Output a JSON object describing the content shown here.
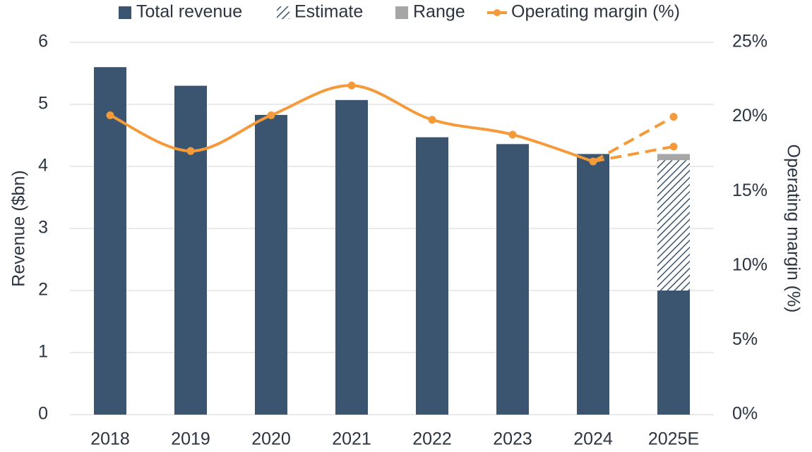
{
  "chart_data": {
    "type": "bar",
    "categories": [
      "2018",
      "2019",
      "2020",
      "2021",
      "2022",
      "2023",
      "2024",
      "2025E"
    ],
    "series": [
      {
        "name": "Total revenue",
        "color": "#3b5470",
        "values": [
          5.6,
          5.3,
          4.83,
          5.07,
          4.47,
          4.36,
          4.2,
          2.0
        ]
      },
      {
        "name": "Estimate",
        "color": "#3b5470",
        "pattern": "hatch",
        "values": [
          null,
          null,
          null,
          null,
          null,
          null,
          null,
          2.1
        ]
      },
      {
        "name": "Range",
        "color": "#a6a6a6",
        "values": [
          null,
          null,
          null,
          null,
          null,
          null,
          null,
          0.1
        ]
      },
      {
        "name": "Operating margin (%)",
        "color": "#f59a3a",
        "axis": "y2",
        "type": "line",
        "smooth": true,
        "values": [
          20.1,
          17.7,
          20.1,
          22.1,
          19.8,
          18.8,
          17.0,
          null
        ],
        "estimate_range": [
          18.0,
          20.0
        ]
      }
    ],
    "stacked": true,
    "ylabel": "Revenue ($bn)",
    "y2label": "Operating margin (%)",
    "ylim": [
      0,
      6
    ],
    "yticks": [
      0,
      1,
      2,
      3,
      4,
      5,
      6
    ],
    "y2lim": [
      0,
      25
    ],
    "y2ticks": [
      {
        "value": 0,
        "label": "0%"
      },
      {
        "value": 5,
        "label": "5%"
      },
      {
        "value": 10,
        "label": "10%"
      },
      {
        "value": 15,
        "label": "15%"
      },
      {
        "value": 20,
        "label": "20%"
      },
      {
        "value": 25,
        "label": "25%"
      }
    ],
    "grid": true,
    "legend": "top"
  }
}
